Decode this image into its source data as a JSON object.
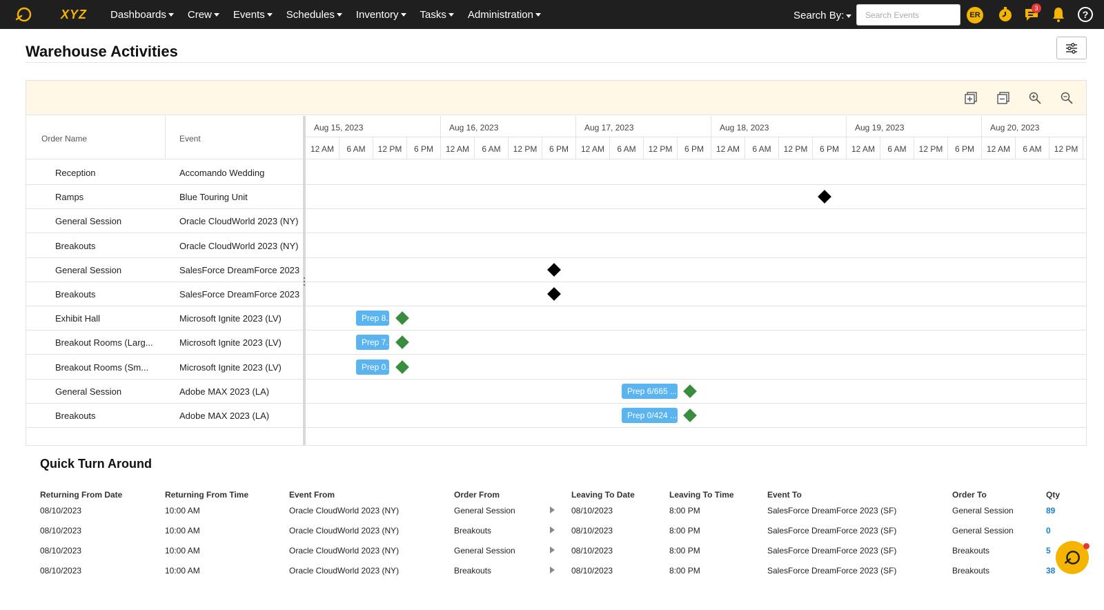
{
  "topbar": {
    "brand": "XYZ",
    "nav": [
      {
        "label": "Dashboards"
      },
      {
        "label": "Crew"
      },
      {
        "label": "Events"
      },
      {
        "label": "Schedules"
      },
      {
        "label": "Inventory"
      },
      {
        "label": "Tasks"
      },
      {
        "label": "Administration"
      }
    ],
    "search_by_label": "Search By:",
    "search_placeholder": "Search Events",
    "avatar_initials": "ER",
    "messages_badge": "3",
    "accent_color": "#f5b400"
  },
  "page": {
    "title": "Warehouse Activities"
  },
  "gantt": {
    "columns": {
      "order_name": "Order Name",
      "event": "Event"
    },
    "dates": [
      "Aug 15, 2023",
      "Aug 16, 2023",
      "Aug 17, 2023",
      "Aug 18, 2023",
      "Aug 19, 2023",
      "Aug 20, 2023"
    ],
    "hours": [
      "12 AM",
      "6 AM",
      "12 PM",
      "6 PM"
    ],
    "rows": [
      {
        "order": "Reception",
        "event": "Accomando Wedding"
      },
      {
        "order": "Ramps",
        "event": "Blue Touring Unit"
      },
      {
        "order": "General Session",
        "event": "Oracle CloudWorld 2023 (NY)"
      },
      {
        "order": "Breakouts",
        "event": "Oracle CloudWorld 2023 (NY)"
      },
      {
        "order": "General Session",
        "event": "SalesForce DreamForce 2023 ("
      },
      {
        "order": "Breakouts",
        "event": "SalesForce DreamForce 2023 ("
      },
      {
        "order": "Exhibit Hall",
        "event": "Microsoft Ignite 2023 (LV)"
      },
      {
        "order": "Breakout Rooms (Larg...",
        "event": "Microsoft Ignite 2023 (LV)"
      },
      {
        "order": "Breakout Rooms (Sm...",
        "event": "Microsoft Ignite 2023 (LV)"
      },
      {
        "order": "General Session",
        "event": "Adobe MAX 2023 (LA)"
      },
      {
        "order": "Breakouts",
        "event": "Adobe MAX 2023 (LA)"
      }
    ],
    "bars": [
      {
        "label": "Prep 8..."
      },
      {
        "label": "Prep 7..."
      },
      {
        "label": "Prep 0..."
      },
      {
        "label": "Prep 6/665 ..."
      },
      {
        "label": "Prep 0/424 ..."
      }
    ],
    "bar_color": "#5ab4f0",
    "milestone_color_done": "#3a8d3f",
    "milestone_color_pending": "#000000"
  },
  "qta": {
    "title": "Quick Turn Around",
    "headers": [
      "Returning From Date",
      "Returning From Time",
      "Event From",
      "Order From",
      "Leaving To Date",
      "Leaving To Time",
      "Event To",
      "Order To",
      "Qty"
    ],
    "rows": [
      [
        "08/10/2023",
        "10:00 AM",
        "Oracle CloudWorld 2023 (NY)",
        "General Session",
        "08/10/2023",
        "8:00 PM",
        "SalesForce DreamForce 2023 (SF)",
        "General Session",
        "89"
      ],
      [
        "08/10/2023",
        "10:00 AM",
        "Oracle CloudWorld 2023 (NY)",
        "Breakouts",
        "08/10/2023",
        "8:00 PM",
        "SalesForce DreamForce 2023 (SF)",
        "General Session",
        "0"
      ],
      [
        "08/10/2023",
        "10:00 AM",
        "Oracle CloudWorld 2023 (NY)",
        "General Session",
        "08/10/2023",
        "8:00 PM",
        "SalesForce DreamForce 2023 (SF)",
        "Breakouts",
        "5"
      ],
      [
        "08/10/2023",
        "10:00 AM",
        "Oracle CloudWorld 2023 (NY)",
        "Breakouts",
        "08/10/2023",
        "8:00 PM",
        "SalesForce DreamForce 2023 (SF)",
        "Breakouts",
        "38"
      ]
    ]
  }
}
